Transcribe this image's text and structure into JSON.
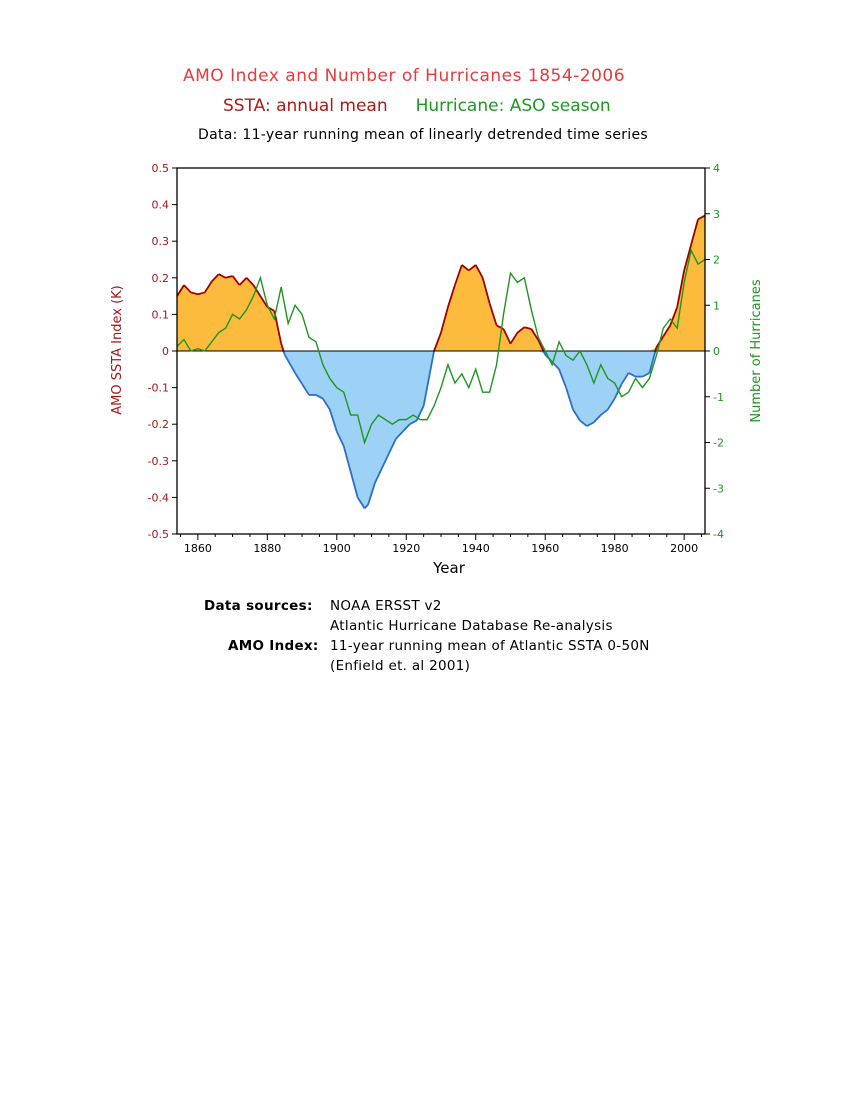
{
  "header": {
    "title": "AMO Index and Number of Hurricanes    1854-2006",
    "subtitle_left": "SSTA: annual mean",
    "subtitle_right": "Hurricane: ASO season",
    "note": "Data: 11-year running mean of linearly detrended time series"
  },
  "footer": {
    "sources_label": "Data sources:",
    "sources_line1": "NOAA ERSST v2",
    "sources_line2": "Atlantic Hurricane Database Re-analysis",
    "amo_label": "AMO Index:",
    "amo_line1": "11-year running mean of Atlantic SSTA 0-50N",
    "amo_line2": "(Enfield et. al 2001)"
  },
  "colors": {
    "positive_fill": "#fcbb3d",
    "negative_fill": "#9dd2f6",
    "positive_line": "#a00000",
    "negative_line": "#2a6fc8",
    "hurricane_line": "#1e961e",
    "left_axis": "#a01818",
    "right_axis": "#1e961e"
  },
  "chart_data": {
    "type": "area",
    "xlabel": "Year",
    "ylabel_left": "AMO SSTA Index (K)",
    "ylabel_right": "Number of Hurricanes",
    "xlim": [
      1854,
      2006
    ],
    "ylim_left": [
      -0.5,
      0.5
    ],
    "ylim_right": [
      -4,
      4
    ],
    "x_ticks": [
      1860,
      1880,
      1900,
      1920,
      1940,
      1960,
      1980,
      2000
    ],
    "y_left_ticks": [
      0.5,
      0.4,
      0.3,
      0.2,
      0.1,
      0,
      -0.1,
      -0.2,
      -0.3,
      -0.4,
      -0.5
    ],
    "y_right_ticks": [
      4,
      3,
      2,
      1,
      0,
      -1,
      -2,
      -3,
      -4
    ],
    "series": [
      {
        "name": "SSTA: annual mean",
        "axis": "left",
        "x": [
          1854,
          1856,
          1858,
          1860,
          1862,
          1864,
          1866,
          1868,
          1870,
          1872,
          1874,
          1876,
          1878,
          1880,
          1882,
          1884,
          1885,
          1888,
          1890,
          1892,
          1894,
          1896,
          1898,
          1900,
          1902,
          1904,
          1906,
          1908,
          1909,
          1911,
          1913,
          1915,
          1917,
          1919,
          1921,
          1923,
          1925,
          1927,
          1928,
          1930,
          1932,
          1934,
          1936,
          1938,
          1940,
          1942,
          1944,
          1946,
          1948,
          1950,
          1952,
          1954,
          1956,
          1958,
          1960,
          1962,
          1964,
          1966,
          1968,
          1970,
          1972,
          1974,
          1976,
          1978,
          1980,
          1982,
          1984,
          1986,
          1988,
          1990,
          1992,
          1994,
          1996,
          1998,
          2000,
          2002,
          2004,
          2006
        ],
        "values": [
          0.15,
          0.18,
          0.16,
          0.155,
          0.16,
          0.19,
          0.21,
          0.2,
          0.205,
          0.18,
          0.2,
          0.18,
          0.15,
          0.12,
          0.11,
          0.02,
          -0.01,
          -0.06,
          -0.09,
          -0.12,
          -0.12,
          -0.13,
          -0.16,
          -0.22,
          -0.26,
          -0.33,
          -0.4,
          -0.43,
          -0.42,
          -0.36,
          -0.32,
          -0.28,
          -0.24,
          -0.22,
          -0.2,
          -0.19,
          -0.15,
          -0.05,
          0.0,
          0.05,
          0.12,
          0.18,
          0.235,
          0.22,
          0.235,
          0.2,
          0.13,
          0.07,
          0.06,
          0.02,
          0.05,
          0.065,
          0.06,
          0.03,
          -0.01,
          -0.03,
          -0.05,
          -0.1,
          -0.16,
          -0.19,
          -0.205,
          -0.195,
          -0.175,
          -0.16,
          -0.13,
          -0.09,
          -0.06,
          -0.07,
          -0.07,
          -0.06,
          0.01,
          0.04,
          0.07,
          0.12,
          0.22,
          0.29,
          0.36,
          0.37
        ]
      },
      {
        "name": "Hurricane: ASO season",
        "axis": "right",
        "x": [
          1854,
          1856,
          1858,
          1860,
          1862,
          1864,
          1866,
          1868,
          1870,
          1872,
          1874,
          1876,
          1878,
          1880,
          1882,
          1884,
          1886,
          1888,
          1890,
          1892,
          1894,
          1896,
          1898,
          1900,
          1902,
          1904,
          1906,
          1908,
          1910,
          1912,
          1914,
          1916,
          1918,
          1920,
          1922,
          1924,
          1926,
          1928,
          1930,
          1932,
          1934,
          1936,
          1938,
          1940,
          1942,
          1944,
          1946,
          1948,
          1950,
          1952,
          1954,
          1956,
          1958,
          1960,
          1962,
          1964,
          1966,
          1968,
          1970,
          1972,
          1974,
          1976,
          1978,
          1980,
          1982,
          1984,
          1986,
          1988,
          1990,
          1992,
          1994,
          1996,
          1998,
          2000,
          2002,
          2004,
          2006
        ],
        "values": [
          0.1,
          0.25,
          0.0,
          0.05,
          0.0,
          0.2,
          0.4,
          0.5,
          0.8,
          0.7,
          0.9,
          1.2,
          1.6,
          1.0,
          0.7,
          1.4,
          0.6,
          1.0,
          0.8,
          0.3,
          0.2,
          -0.3,
          -0.6,
          -0.8,
          -0.9,
          -1.4,
          -1.4,
          -2.0,
          -1.6,
          -1.4,
          -1.5,
          -1.6,
          -1.5,
          -1.5,
          -1.4,
          -1.5,
          -1.5,
          -1.2,
          -0.8,
          -0.3,
          -0.7,
          -0.5,
          -0.8,
          -0.4,
          -0.9,
          -0.9,
          -0.3,
          0.8,
          1.7,
          1.5,
          1.6,
          0.9,
          0.3,
          0.0,
          -0.3,
          0.2,
          -0.1,
          -0.2,
          0.0,
          -0.3,
          -0.7,
          -0.3,
          -0.6,
          -0.7,
          -1.0,
          -0.9,
          -0.6,
          -0.8,
          -0.6,
          -0.1,
          0.5,
          0.7,
          0.5,
          1.5,
          2.2,
          1.9,
          2.0
        ]
      }
    ]
  }
}
